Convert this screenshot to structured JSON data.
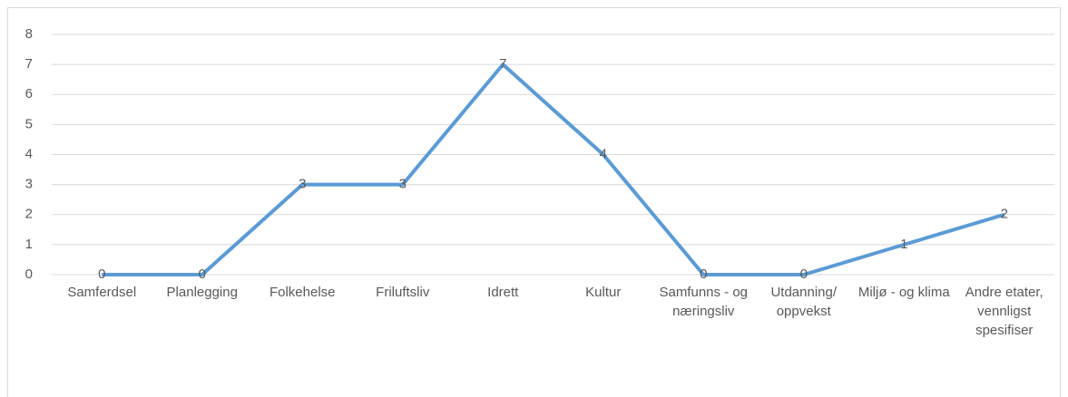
{
  "chart_data": {
    "type": "line",
    "categories": [
      "Samferdsel",
      "Planlegging",
      "Folkehelse",
      "Friluftsliv",
      "Idrett",
      "Kultur",
      "Samfunns - og næringsliv",
      "Utdanning/ oppvekst",
      "Miljø - og klima",
      "Andre etater, vennligst spesifiser"
    ],
    "values": [
      0,
      0,
      3,
      3,
      7,
      4,
      0,
      0,
      1,
      2
    ],
    "color": "#5b9bd5",
    "ylim": [
      0,
      8
    ],
    "yticks": [
      0,
      1,
      2,
      3,
      4,
      5,
      6,
      7,
      8
    ],
    "grid": true
  }
}
